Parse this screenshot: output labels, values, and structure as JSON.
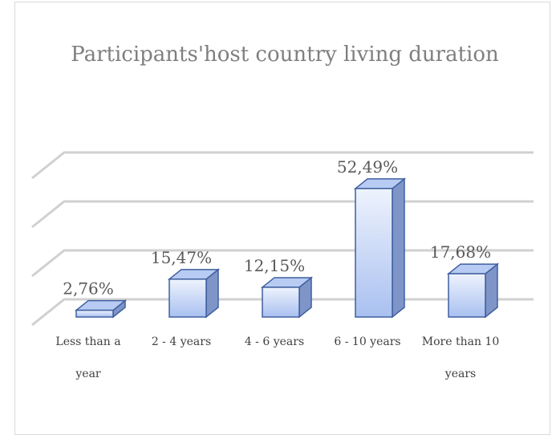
{
  "chart_data": {
    "type": "bar3d",
    "title": "Participants'host country living duration",
    "categories": [
      "Less than a year",
      "2 - 4 years",
      "4 - 6 years",
      "6 - 10 years",
      "More than 10 years"
    ],
    "values": [
      2.76,
      15.47,
      12.15,
      52.49,
      17.68
    ],
    "value_labels": [
      "2,76%",
      "15,47%",
      "12,15%",
      "52,49%",
      "17,68%"
    ],
    "color": "#c9d8f7",
    "ylim": [
      0,
      60
    ],
    "yticks": [
      0,
      20,
      40,
      60
    ],
    "grid": true
  }
}
